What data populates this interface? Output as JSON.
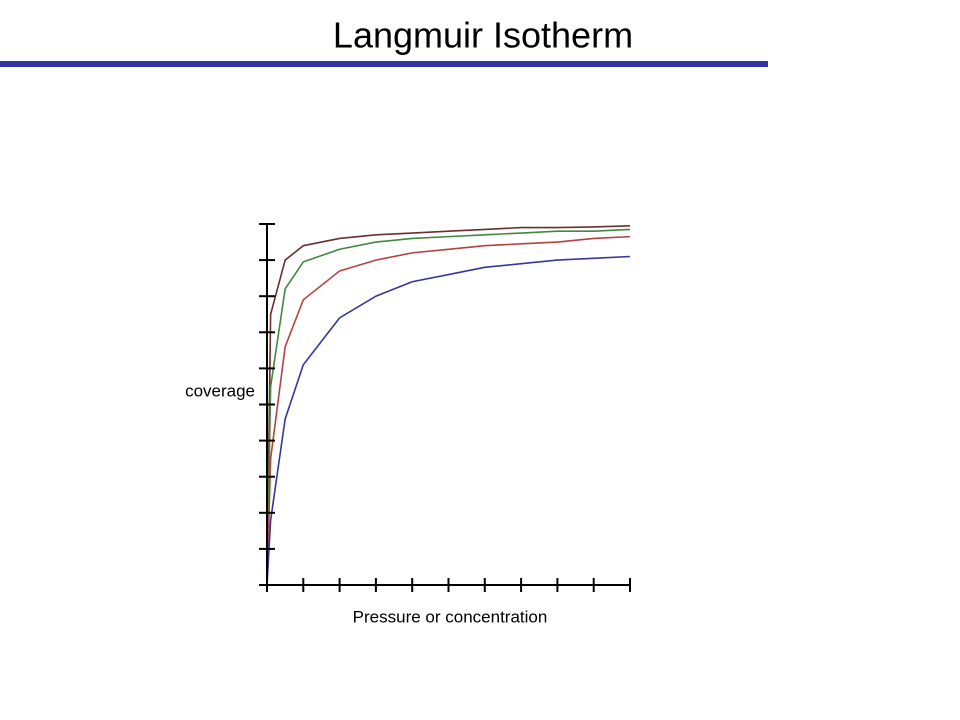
{
  "chart_data": {
    "type": "line",
    "title": "Langmuir Isotherm",
    "x_label": "Pressure or concentration",
    "y_label": "coverage",
    "x": [
      0,
      0.1,
      0.5,
      1,
      2,
      3,
      4,
      5,
      6,
      7,
      8,
      9,
      10
    ],
    "series": [
      {
        "color": "#6b2f2f",
        "values": [
          0,
          7.5,
          9.0,
          9.4,
          9.6,
          9.7,
          9.75,
          9.8,
          9.85,
          9.9,
          9.9,
          9.92,
          9.95
        ]
      },
      {
        "color": "#3f8a3f",
        "values": [
          0,
          5.5,
          8.2,
          8.95,
          9.3,
          9.5,
          9.6,
          9.65,
          9.7,
          9.75,
          9.8,
          9.8,
          9.85
        ]
      },
      {
        "color": "#b4423f",
        "values": [
          0,
          3.5,
          6.6,
          7.9,
          8.7,
          9.0,
          9.2,
          9.3,
          9.4,
          9.45,
          9.5,
          9.6,
          9.65
        ]
      },
      {
        "color": "#33399a",
        "values": [
          0,
          1.8,
          4.6,
          6.1,
          7.4,
          8.0,
          8.4,
          8.6,
          8.8,
          8.9,
          9.0,
          9.05,
          9.1
        ]
      }
    ],
    "xlim": [
      0,
      10
    ],
    "ylim": [
      0,
      10
    ],
    "xticks": [
      0,
      1,
      2,
      3,
      4,
      5,
      6,
      7,
      8,
      9,
      10
    ],
    "yticks": [
      0,
      1,
      2,
      3,
      4,
      5,
      6,
      7,
      8,
      9,
      10
    ],
    "tick_labels": false,
    "grid": false
  }
}
